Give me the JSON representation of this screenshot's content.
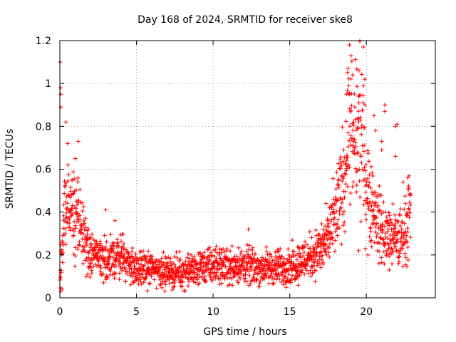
{
  "chart_data": {
    "type": "scatter",
    "title": "Day 168 of 2024, SRMTID for receiver ske8",
    "xlabel": "GPS time / hours",
    "ylabel": "SRMTID / TECUs",
    "xlim": [
      0,
      24.5
    ],
    "ylim": [
      0,
      1.2
    ],
    "xticks": [
      0,
      5,
      10,
      15,
      20
    ],
    "xtick_labels": [
      "0",
      "5",
      "10",
      "15",
      "20"
    ],
    "yticks": [
      0,
      0.2,
      0.4,
      0.6,
      0.8,
      1.0,
      1.2
    ],
    "ytick_labels": [
      "0",
      "0.2",
      "0.4",
      "0.6",
      "0.8",
      "1",
      "1.2"
    ],
    "grid": true,
    "marker": "+",
    "series": [
      {
        "name": "SRMTID",
        "color": "#ff0000",
        "profile": {
          "x": [
            0.0,
            0.3,
            0.7,
            1.0,
            1.5,
            2.0,
            3.0,
            4.0,
            5.0,
            6.0,
            7.0,
            8.0,
            9.0,
            10.0,
            11.0,
            12.0,
            13.0,
            14.0,
            15.0,
            16.0,
            17.0,
            17.5,
            18.0,
            18.5,
            18.8,
            19.2,
            19.6,
            20.0,
            20.5,
            21.0,
            21.5,
            22.0,
            22.5,
            22.9
          ],
          "y": [
            0.12,
            0.38,
            0.45,
            0.4,
            0.3,
            0.2,
            0.18,
            0.2,
            0.13,
            0.14,
            0.12,
            0.12,
            0.14,
            0.15,
            0.15,
            0.15,
            0.14,
            0.14,
            0.15,
            0.18,
            0.22,
            0.28,
            0.38,
            0.55,
            0.75,
            0.72,
            0.78,
            0.55,
            0.4,
            0.32,
            0.28,
            0.27,
            0.3,
            0.4
          ]
        },
        "highlights": [
          {
            "x": 0.02,
            "y": 1.1
          },
          {
            "x": 0.05,
            "y": 0.98
          },
          {
            "x": 0.06,
            "y": 0.95
          },
          {
            "x": 0.07,
            "y": 0.89
          },
          {
            "x": 0.4,
            "y": 0.82
          },
          {
            "x": 0.5,
            "y": 0.72
          },
          {
            "x": 1.2,
            "y": 0.73
          },
          {
            "x": 1.0,
            "y": 0.65
          },
          {
            "x": 3.0,
            "y": 0.41
          },
          {
            "x": 3.6,
            "y": 0.36
          },
          {
            "x": 12.3,
            "y": 0.32
          },
          {
            "x": 18.9,
            "y": 1.18
          },
          {
            "x": 19.0,
            "y": 1.13
          },
          {
            "x": 18.8,
            "y": 1.07
          },
          {
            "x": 19.1,
            "y": 1.04
          },
          {
            "x": 19.8,
            "y": 1.17
          },
          {
            "x": 19.9,
            "y": 1.02
          },
          {
            "x": 18.7,
            "y": 0.95
          },
          {
            "x": 18.9,
            "y": 0.95
          },
          {
            "x": 19.5,
            "y": 0.94
          },
          {
            "x": 19.9,
            "y": 0.9
          },
          {
            "x": 21.2,
            "y": 0.9
          },
          {
            "x": 21.2,
            "y": 0.87
          },
          {
            "x": 21.9,
            "y": 0.8
          },
          {
            "x": 22.0,
            "y": 0.81
          },
          {
            "x": 20.5,
            "y": 0.85
          },
          {
            "x": 20.6,
            "y": 0.78
          },
          {
            "x": 21.0,
            "y": 0.73
          },
          {
            "x": 21.0,
            "y": 0.69
          },
          {
            "x": 21.9,
            "y": 0.66
          },
          {
            "x": 22.7,
            "y": 0.56
          },
          {
            "x": 22.4,
            "y": 0.54
          },
          {
            "x": 19.5,
            "y": 0.22
          },
          {
            "x": 20.1,
            "y": 0.2
          },
          {
            "x": 21.5,
            "y": 0.13
          },
          {
            "x": 22.1,
            "y": 0.16
          },
          {
            "x": 0.15,
            "y": 0.04
          },
          {
            "x": 0.05,
            "y": 0.03
          }
        ]
      }
    ]
  }
}
